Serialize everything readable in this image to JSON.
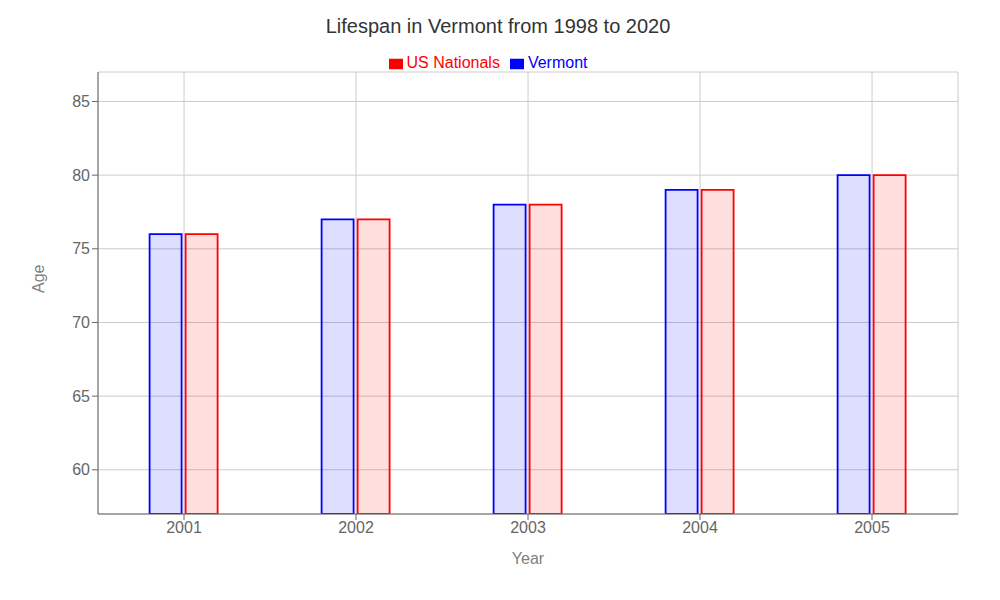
{
  "chart_data": {
    "type": "bar",
    "title": "Lifespan in Vermont from 1998 to 2020",
    "xlabel": "Year",
    "ylabel": "Age",
    "categories": [
      "2001",
      "2002",
      "2003",
      "2004",
      "2005"
    ],
    "series": [
      {
        "name": "Vermont",
        "color": "#0000ff",
        "values": [
          76,
          77,
          78,
          79,
          80
        ]
      },
      {
        "name": "US Nationals",
        "color": "#ff0000",
        "values": [
          76,
          77,
          78,
          79,
          80
        ]
      }
    ],
    "ylim": [
      57,
      87
    ],
    "yticks": [
      60,
      65,
      70,
      75,
      80,
      85
    ],
    "grid": true,
    "legend": "top"
  }
}
